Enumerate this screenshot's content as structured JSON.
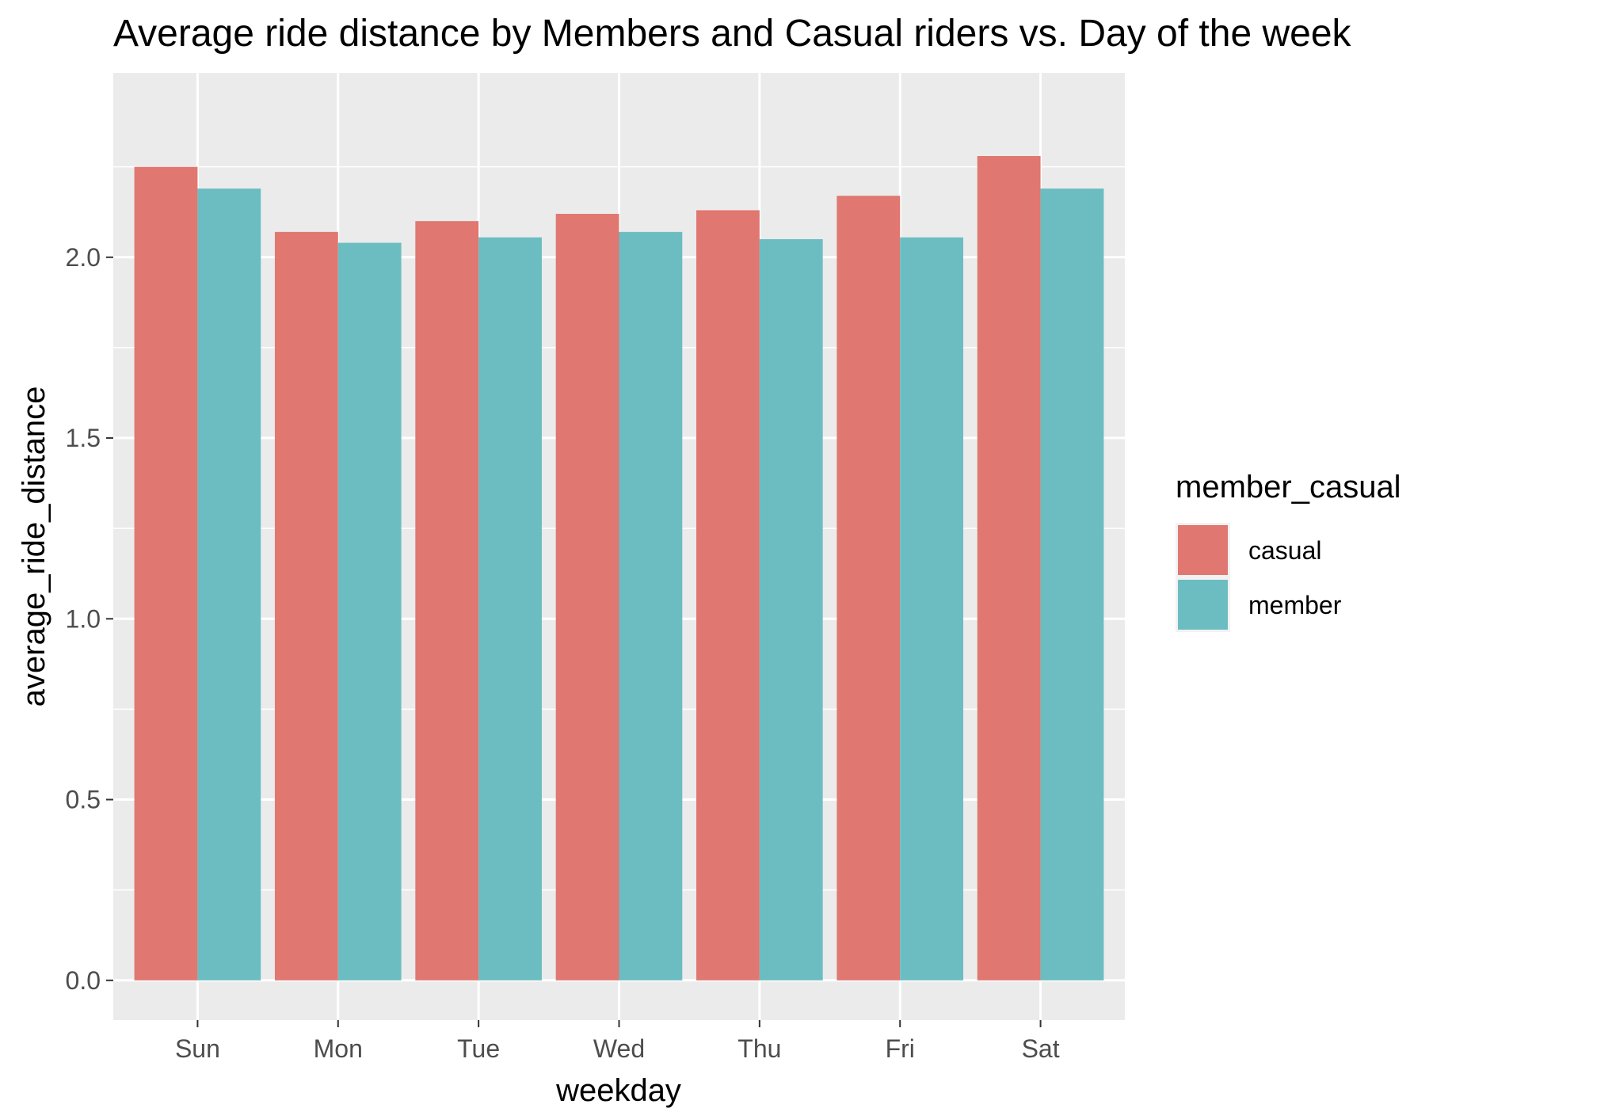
{
  "chart_data": {
    "type": "bar",
    "title": "Average ride distance by Members and Casual riders vs. Day of the week",
    "xlabel": "weekday",
    "ylabel": "average_ride_distance",
    "categories": [
      "Sun",
      "Mon",
      "Tue",
      "Wed",
      "Thu",
      "Fri",
      "Sat"
    ],
    "series": [
      {
        "name": "casual",
        "color": "#e07770",
        "values": [
          2.25,
          2.07,
          2.1,
          2.12,
          2.13,
          2.17,
          2.28
        ]
      },
      {
        "name": "member",
        "color": "#6cbdc1",
        "values": [
          2.19,
          2.04,
          2.055,
          2.07,
          2.05,
          2.055,
          2.19
        ]
      }
    ],
    "ylim": [
      -0.11,
      2.51
    ],
    "yticks": [
      0.0,
      0.5,
      1.0,
      1.5,
      2.0
    ],
    "ytick_labels": [
      "0.0",
      "0.5",
      "1.0",
      "1.5",
      "2.0"
    ],
    "grid": true,
    "legend": {
      "title": "member_casual",
      "position": "right"
    },
    "panel_background": "#ebebeb"
  }
}
